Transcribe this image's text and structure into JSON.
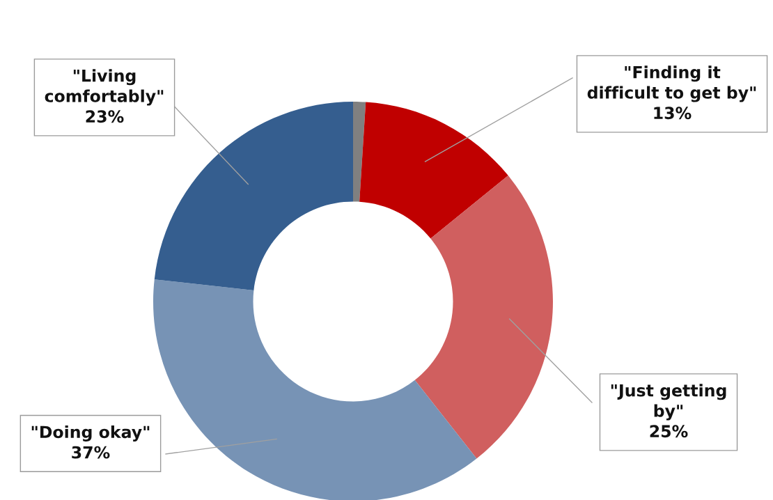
{
  "chart_data": {
    "type": "donut",
    "categories": [
      null,
      "\"Finding it\ndifficult to get by\"",
      "\"Just getting\nby\"",
      "\"Doing okay\"",
      "\"Living\ncomfortably\""
    ],
    "values": [
      1,
      13,
      25,
      37,
      23
    ],
    "value_labels": [
      null,
      "13%",
      "25%",
      "37%",
      "23%"
    ],
    "colors": [
      "#808080",
      "#c00000",
      "#d05f5f",
      "#7793b5",
      "#355e8f"
    ],
    "legend": false
  }
}
